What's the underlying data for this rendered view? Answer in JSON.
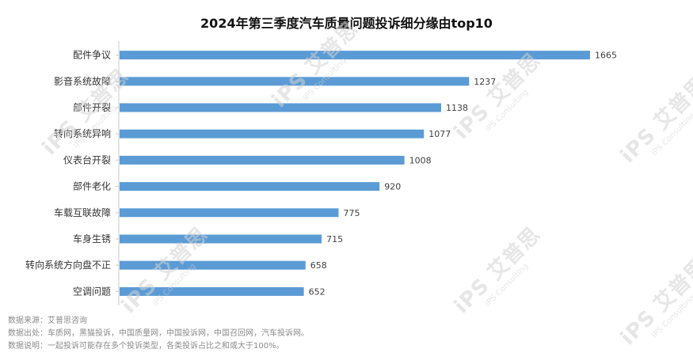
{
  "title": "2024年第三季度汽车质量问题投诉细分缘由top10",
  "notes": {
    "source": "数据来源：艾普思咨询",
    "origin": "数据出处：车质网，黑猫投诉，中国质量网，中国投诉网，中国召回网，汽车投诉网。",
    "explain": "数据说明：一起投诉可能存在多个投诉类型，各类投诉占比之和或大于100%。"
  },
  "watermark": {
    "brand": "iPS 艾普思",
    "sub": "IPS Consulting"
  },
  "colors": {
    "bar": "#5b9bd5",
    "axis": "#c8c8c8",
    "label": "#333333",
    "value": "#404040"
  },
  "chart_data": {
    "type": "bar",
    "orientation": "horizontal",
    "title": "2024年第三季度汽车质量问题投诉细分缘由top10",
    "categories": [
      "配件争议",
      "影音系统故障",
      "部件开裂",
      "转向系统异响",
      "仪表台开裂",
      "部件老化",
      "车载互联故障",
      "车身生锈",
      "转向系统方向盘不正",
      "空调问题"
    ],
    "values": [
      1665,
      1237,
      1138,
      1077,
      1008,
      920,
      775,
      715,
      658,
      652
    ],
    "xlabel": "",
    "ylabel": "",
    "xlim": [
      0,
      1665
    ],
    "grid": false,
    "legend": "none"
  }
}
